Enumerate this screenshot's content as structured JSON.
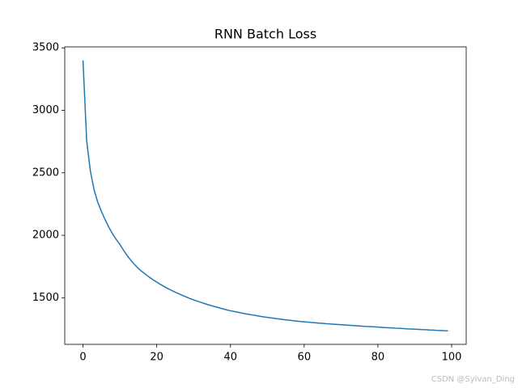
{
  "chart_data": {
    "type": "line",
    "title": "RNN Batch Loss",
    "x": [
      0,
      1,
      2,
      3,
      4,
      5,
      6,
      7,
      8,
      9,
      10,
      11,
      12,
      13,
      14,
      15,
      16,
      17,
      18,
      19,
      20,
      21,
      22,
      23,
      24,
      25,
      26,
      27,
      28,
      29,
      30,
      31,
      32,
      33,
      34,
      35,
      36,
      37,
      38,
      39,
      40,
      41,
      42,
      43,
      44,
      45,
      46,
      47,
      48,
      49,
      50,
      51,
      52,
      53,
      54,
      55,
      56,
      57,
      58,
      59,
      60,
      61,
      62,
      63,
      64,
      65,
      66,
      67,
      68,
      69,
      70,
      71,
      72,
      73,
      74,
      75,
      76,
      77,
      78,
      79,
      80,
      81,
      82,
      83,
      84,
      85,
      86,
      87,
      88,
      89,
      90,
      91,
      92,
      93,
      94,
      95,
      96,
      97,
      98,
      99
    ],
    "series": [
      {
        "color": "#1f77b4",
        "values": [
          3400,
          2755,
          2515,
          2365,
          2265,
          2190,
          2125,
          2065,
          2013,
          1967,
          1927,
          1880,
          1837,
          1800,
          1766,
          1735,
          1710,
          1687,
          1665,
          1644,
          1625,
          1607,
          1590,
          1574,
          1559,
          1545,
          1532,
          1519,
          1507,
          1494,
          1483,
          1473,
          1463,
          1453,
          1444,
          1435,
          1427,
          1419,
          1411,
          1403,
          1396,
          1390,
          1384,
          1378,
          1372,
          1367,
          1362,
          1357,
          1352,
          1347,
          1343,
          1339,
          1335,
          1331,
          1327,
          1323,
          1320,
          1316,
          1313,
          1310,
          1307,
          1305,
          1302,
          1300,
          1297,
          1295,
          1292,
          1290,
          1288,
          1286,
          1284,
          1282,
          1280,
          1278,
          1276,
          1274,
          1272,
          1270,
          1269,
          1267,
          1265,
          1263,
          1261,
          1260,
          1258,
          1256,
          1255,
          1253,
          1251,
          1250,
          1248,
          1247,
          1245,
          1244,
          1242,
          1241,
          1239,
          1238,
          1236,
          1235
        ]
      }
    ],
    "xlim": [
      -4.95,
      103.95
    ],
    "ylim": [
      1127,
      3508
    ],
    "xticks": [
      0,
      20,
      40,
      60,
      80,
      100
    ],
    "yticks": [
      1500,
      2000,
      2500,
      3000,
      3500
    ],
    "watermark": "CSDN @Sylvan_Ding"
  }
}
